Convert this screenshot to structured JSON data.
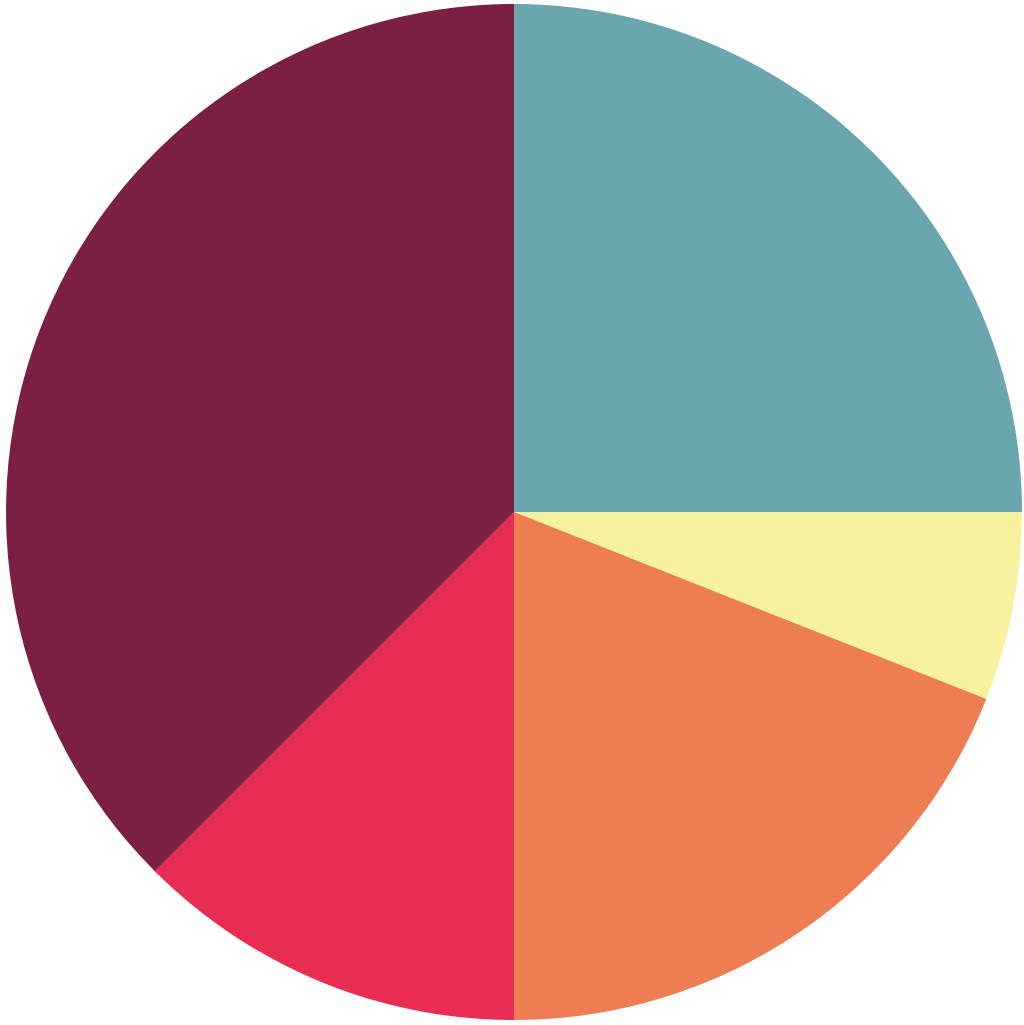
{
  "chart_data": {
    "type": "pie",
    "title": "",
    "legend": "none",
    "start_angle_deg": 0,
    "direction": "clockwise",
    "slices": [
      {
        "value": 25.0,
        "color": "#6aa6ad"
      },
      {
        "value": 6.0,
        "color": "#f6f29f"
      },
      {
        "value": 19.0,
        "color": "#ee7d52"
      },
      {
        "value": 12.5,
        "color": "#e82c52"
      },
      {
        "value": 37.5,
        "color": "#7b2042"
      }
    ]
  }
}
